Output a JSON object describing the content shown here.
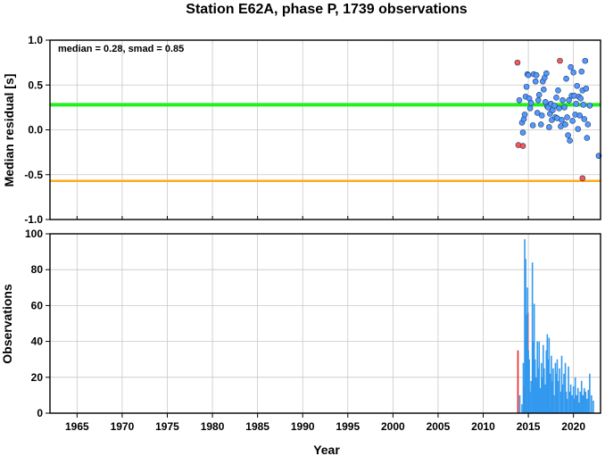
{
  "chart_data": [
    {
      "type": "scatter",
      "title": "Station E62A, phase P, 1739 observations",
      "ylabel": "Median residual [s]",
      "annotation": "median = 0.28, smad = 0.85",
      "xlim": [
        1962,
        2023
      ],
      "ylim": [
        -1.0,
        1.0
      ],
      "yticks": [
        "1.0",
        "0.5",
        "0.0",
        "-0.5",
        "-1.0"
      ],
      "grid": true,
      "reference_lines": [
        {
          "value": 0.28,
          "color": "#22ee22"
        },
        {
          "value": -0.57,
          "color": "#ffaa22"
        }
      ],
      "series": [
        {
          "color": "#ff5555",
          "points": [
            [
              2013.8,
              0.75
            ],
            [
              2013.9,
              -0.17
            ],
            [
              2014.4,
              -0.18
            ],
            [
              2018.5,
              0.77
            ],
            [
              2021.0,
              -0.54
            ]
          ]
        },
        {
          "color": "#5599ff",
          "points": [
            [
              2014.0,
              0.33
            ],
            [
              2014.3,
              0.08
            ],
            [
              2014.4,
              -0.03
            ],
            [
              2014.5,
              0.12
            ],
            [
              2014.6,
              0.17
            ],
            [
              2014.7,
              0.37
            ],
            [
              2014.8,
              0.48
            ],
            [
              2014.9,
              0.62
            ],
            [
              2015.0,
              0.61
            ],
            [
              2015.1,
              0.35
            ],
            [
              2015.2,
              0.24
            ],
            [
              2015.3,
              0.3
            ],
            [
              2015.5,
              0.05
            ],
            [
              2015.6,
              0.62
            ],
            [
              2015.8,
              0.54
            ],
            [
              2015.9,
              0.61
            ],
            [
              2016.0,
              0.19
            ],
            [
              2016.1,
              0.33
            ],
            [
              2016.2,
              0.39
            ],
            [
              2016.4,
              0.06
            ],
            [
              2016.5,
              0.16
            ],
            [
              2016.6,
              0.54
            ],
            [
              2016.7,
              0.45
            ],
            [
              2016.8,
              0.58
            ],
            [
              2016.9,
              0.31
            ],
            [
              2017.0,
              0.63
            ],
            [
              2017.1,
              0.26
            ],
            [
              2017.2,
              0.25
            ],
            [
              2017.3,
              0.03
            ],
            [
              2017.4,
              0.18
            ],
            [
              2017.5,
              0.29
            ],
            [
              2017.6,
              0.11
            ],
            [
              2017.7,
              0.22
            ],
            [
              2017.9,
              0.27
            ],
            [
              2018.0,
              0.14
            ],
            [
              2018.1,
              0.36
            ],
            [
              2018.2,
              0.13
            ],
            [
              2018.3,
              0.44
            ],
            [
              2018.4,
              0.24
            ],
            [
              2018.6,
              0.04
            ],
            [
              2018.7,
              0.11
            ],
            [
              2018.8,
              0.33
            ],
            [
              2019.0,
              0.25
            ],
            [
              2019.1,
              0.06
            ],
            [
              2019.2,
              0.57
            ],
            [
              2019.3,
              0.14
            ],
            [
              2019.4,
              -0.06
            ],
            [
              2019.5,
              0.33
            ],
            [
              2019.6,
              -0.12
            ],
            [
              2019.7,
              0.7
            ],
            [
              2019.8,
              0.38
            ],
            [
              2019.9,
              0.1
            ],
            [
              2020.0,
              0.64
            ],
            [
              2020.1,
              0.38
            ],
            [
              2020.2,
              0.17
            ],
            [
              2020.3,
              0.29
            ],
            [
              2020.4,
              0.49
            ],
            [
              2020.5,
              0.01
            ],
            [
              2020.6,
              0.37
            ],
            [
              2020.7,
              0.16
            ],
            [
              2020.8,
              0.35
            ],
            [
              2020.9,
              0.65
            ],
            [
              2021.0,
              0.44
            ],
            [
              2021.1,
              0.28
            ],
            [
              2021.2,
              0.12
            ],
            [
              2021.3,
              0.77
            ],
            [
              2021.4,
              0.46
            ],
            [
              2021.5,
              -0.09
            ],
            [
              2021.6,
              0.06
            ],
            [
              2021.8,
              0.27
            ],
            [
              2022.8,
              -0.29
            ]
          ]
        }
      ]
    },
    {
      "type": "bar",
      "ylabel": "Observations",
      "xlabel": "Year",
      "xlim": [
        1962,
        2023
      ],
      "ylim": [
        0,
        100
      ],
      "xticks": [
        1965,
        1970,
        1975,
        1980,
        1985,
        1990,
        1995,
        2000,
        2005,
        2010,
        2015,
        2020
      ],
      "yticks": [
        "0",
        "20",
        "40",
        "60",
        "80",
        "100"
      ],
      "grid": true,
      "series": [
        {
          "color": "#ee2222",
          "x": [
            2013.85,
            2014.5,
            2014.95,
            2021.0
          ],
          "values": [
            35,
            15,
            56,
            10
          ]
        },
        {
          "color": "#3399ee",
          "x": [
            2014.05,
            2014.3,
            2014.45,
            2014.6,
            2014.7,
            2014.8,
            2014.9,
            2015.0,
            2015.1,
            2015.2,
            2015.3,
            2015.45,
            2015.55,
            2015.65,
            2015.75,
            2015.85,
            2016.0,
            2016.1,
            2016.2,
            2016.3,
            2016.45,
            2016.55,
            2016.65,
            2016.75,
            2016.85,
            2017.0,
            2017.1,
            2017.2,
            2017.3,
            2017.45,
            2017.55,
            2017.65,
            2017.75,
            2017.85,
            2018.0,
            2018.1,
            2018.2,
            2018.3,
            2018.45,
            2018.6,
            2018.7,
            2018.8,
            2018.95,
            2019.1,
            2019.2,
            2019.3,
            2019.45,
            2019.6,
            2019.7,
            2019.85,
            2020.0,
            2020.1,
            2020.2,
            2020.35,
            2020.5,
            2020.6,
            2020.75,
            2020.9,
            2021.05,
            2021.2,
            2021.35,
            2021.5,
            2021.65,
            2021.8,
            2022.0,
            2022.2
          ],
          "values": [
            10,
            5,
            28,
            97,
            86,
            55,
            70,
            35,
            30,
            12,
            18,
            84,
            40,
            61,
            30,
            20,
            40,
            25,
            40,
            14,
            28,
            20,
            38,
            25,
            16,
            35,
            44,
            30,
            42,
            22,
            32,
            18,
            25,
            10,
            28,
            22,
            30,
            18,
            25,
            12,
            32,
            16,
            22,
            28,
            12,
            8,
            26,
            12,
            16,
            10,
            15,
            8,
            20,
            10,
            14,
            6,
            12,
            18,
            10,
            14,
            12,
            8,
            13,
            22,
            10,
            7
          ]
        }
      ]
    }
  ]
}
